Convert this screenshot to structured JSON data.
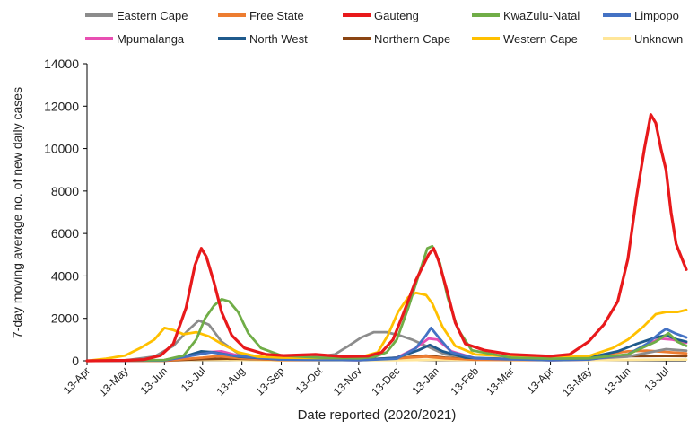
{
  "chart_data": {
    "type": "line",
    "title": "",
    "xlabel": "Date reported (2020/2021)",
    "ylabel": "7-day moving average no. of new daily cases",
    "ylim": [
      0,
      14000
    ],
    "yticks": [
      0,
      2000,
      4000,
      6000,
      8000,
      10000,
      12000,
      14000
    ],
    "xlim": [
      "2020-04-13",
      "2021-07-29"
    ],
    "xticks": [
      {
        "date": "2020-04-13",
        "label": "13-Apr"
      },
      {
        "date": "2020-05-13",
        "label": "13-May"
      },
      {
        "date": "2020-06-13",
        "label": "13-Jun"
      },
      {
        "date": "2020-07-13",
        "label": "13-Jul"
      },
      {
        "date": "2020-08-13",
        "label": "13-Aug"
      },
      {
        "date": "2020-09-13",
        "label": "13-Sep"
      },
      {
        "date": "2020-10-13",
        "label": "13-Oct"
      },
      {
        "date": "2020-11-13",
        "label": "13-Nov"
      },
      {
        "date": "2020-12-13",
        "label": "13-Dec"
      },
      {
        "date": "2021-01-13",
        "label": "13-Jan"
      },
      {
        "date": "2021-02-13",
        "label": "13-Feb"
      },
      {
        "date": "2021-03-13",
        "label": "13-Mar"
      },
      {
        "date": "2021-04-13",
        "label": "13-Apr"
      },
      {
        "date": "2021-05-13",
        "label": "13-May"
      },
      {
        "date": "2021-06-13",
        "label": "13-Jun"
      },
      {
        "date": "2021-07-13",
        "label": "13-Jul"
      }
    ],
    "grid": false,
    "legend_position": "top",
    "series": [
      {
        "name": "Eastern Cape",
        "color": "#8c8c8c",
        "points": [
          [
            "2020-04-13",
            0
          ],
          [
            "2020-05-13",
            20
          ],
          [
            "2020-06-05",
            200
          ],
          [
            "2020-06-20",
            700
          ],
          [
            "2020-07-01",
            1400
          ],
          [
            "2020-07-10",
            1900
          ],
          [
            "2020-07-18",
            1700
          ],
          [
            "2020-07-28",
            900
          ],
          [
            "2020-08-10",
            350
          ],
          [
            "2020-09-01",
            150
          ],
          [
            "2020-10-01",
            120
          ],
          [
            "2020-10-25",
            300
          ],
          [
            "2020-11-05",
            700
          ],
          [
            "2020-11-15",
            1100
          ],
          [
            "2020-11-25",
            1350
          ],
          [
            "2020-12-05",
            1350
          ],
          [
            "2020-12-15",
            1200
          ],
          [
            "2020-12-25",
            1000
          ],
          [
            "2021-01-05",
            700
          ],
          [
            "2021-01-20",
            300
          ],
          [
            "2021-02-13",
            120
          ],
          [
            "2021-03-13",
            60
          ],
          [
            "2021-04-13",
            60
          ],
          [
            "2021-05-13",
            90
          ],
          [
            "2021-06-13",
            200
          ],
          [
            "2021-07-13",
            550
          ],
          [
            "2021-07-29",
            480
          ]
        ]
      },
      {
        "name": "Free State",
        "color": "#ed7d31",
        "points": [
          [
            "2020-04-13",
            0
          ],
          [
            "2020-06-13",
            10
          ],
          [
            "2020-07-13",
            150
          ],
          [
            "2020-07-25",
            220
          ],
          [
            "2020-08-13",
            120
          ],
          [
            "2020-09-13",
            40
          ],
          [
            "2020-10-13",
            40
          ],
          [
            "2020-11-13",
            70
          ],
          [
            "2020-12-13",
            120
          ],
          [
            "2021-01-05",
            200
          ],
          [
            "2021-01-20",
            120
          ],
          [
            "2021-02-13",
            50
          ],
          [
            "2021-04-13",
            40
          ],
          [
            "2021-05-13",
            130
          ],
          [
            "2021-06-01",
            350
          ],
          [
            "2021-06-13",
            450
          ],
          [
            "2021-06-28",
            480
          ],
          [
            "2021-07-13",
            420
          ],
          [
            "2021-07-29",
            350
          ]
        ]
      },
      {
        "name": "Gauteng",
        "color": "#e8191b",
        "points": [
          [
            "2020-04-13",
            0
          ],
          [
            "2020-05-13",
            20
          ],
          [
            "2020-05-28",
            60
          ],
          [
            "2020-06-10",
            250
          ],
          [
            "2020-06-20",
            800
          ],
          [
            "2020-06-30",
            2500
          ],
          [
            "2020-07-07",
            4500
          ],
          [
            "2020-07-12",
            5300
          ],
          [
            "2020-07-16",
            4900
          ],
          [
            "2020-07-22",
            3700
          ],
          [
            "2020-07-28",
            2300
          ],
          [
            "2020-08-05",
            1200
          ],
          [
            "2020-08-15",
            600
          ],
          [
            "2020-09-01",
            300
          ],
          [
            "2020-09-15",
            250
          ],
          [
            "2020-10-10",
            300
          ],
          [
            "2020-11-01",
            200
          ],
          [
            "2020-11-20",
            220
          ],
          [
            "2020-12-01",
            400
          ],
          [
            "2020-12-10",
            1000
          ],
          [
            "2020-12-18",
            2200
          ],
          [
            "2020-12-28",
            3800
          ],
          [
            "2021-01-07",
            5000
          ],
          [
            "2021-01-11",
            5300
          ],
          [
            "2021-01-15",
            4700
          ],
          [
            "2021-01-22",
            3200
          ],
          [
            "2021-01-28",
            1800
          ],
          [
            "2021-02-05",
            800
          ],
          [
            "2021-02-20",
            500
          ],
          [
            "2021-03-13",
            300
          ],
          [
            "2021-04-13",
            220
          ],
          [
            "2021-04-28",
            300
          ],
          [
            "2021-05-13",
            900
          ],
          [
            "2021-05-25",
            1700
          ],
          [
            "2021-06-05",
            2800
          ],
          [
            "2021-06-13",
            4800
          ],
          [
            "2021-06-20",
            7800
          ],
          [
            "2021-06-26",
            10000
          ],
          [
            "2021-07-01",
            11600
          ],
          [
            "2021-07-05",
            11200
          ],
          [
            "2021-07-09",
            10000
          ],
          [
            "2021-07-13",
            9000
          ],
          [
            "2021-07-17",
            7000
          ],
          [
            "2021-07-21",
            5500
          ],
          [
            "2021-07-25",
            4900
          ],
          [
            "2021-07-29",
            4300
          ]
        ]
      },
      {
        "name": "KwaZulu-Natal",
        "color": "#70ad47",
        "points": [
          [
            "2020-04-13",
            0
          ],
          [
            "2020-06-13",
            40
          ],
          [
            "2020-06-28",
            250
          ],
          [
            "2020-07-08",
            1000
          ],
          [
            "2020-07-15",
            2000
          ],
          [
            "2020-07-22",
            2600
          ],
          [
            "2020-07-28",
            2900
          ],
          [
            "2020-08-03",
            2800
          ],
          [
            "2020-08-10",
            2300
          ],
          [
            "2020-08-18",
            1300
          ],
          [
            "2020-08-28",
            600
          ],
          [
            "2020-09-13",
            250
          ],
          [
            "2020-10-13",
            150
          ],
          [
            "2020-11-13",
            120
          ],
          [
            "2020-11-25",
            180
          ],
          [
            "2020-12-05",
            400
          ],
          [
            "2020-12-13",
            1000
          ],
          [
            "2020-12-22",
            2500
          ],
          [
            "2020-12-30",
            4000
          ],
          [
            "2021-01-06",
            5300
          ],
          [
            "2021-01-10",
            5400
          ],
          [
            "2021-01-16",
            4600
          ],
          [
            "2021-01-22",
            3000
          ],
          [
            "2021-01-30",
            1500
          ],
          [
            "2021-02-10",
            500
          ],
          [
            "2021-03-13",
            150
          ],
          [
            "2021-04-13",
            100
          ],
          [
            "2021-05-13",
            120
          ],
          [
            "2021-06-13",
            300
          ],
          [
            "2021-07-05",
            900
          ],
          [
            "2021-07-15",
            1300
          ],
          [
            "2021-07-22",
            900
          ],
          [
            "2021-07-29",
            700
          ]
        ]
      },
      {
        "name": "Limpopo",
        "color": "#4472c4",
        "points": [
          [
            "2020-04-13",
            0
          ],
          [
            "2020-06-13",
            20
          ],
          [
            "2020-07-05",
            250
          ],
          [
            "2020-07-20",
            400
          ],
          [
            "2020-08-05",
            250
          ],
          [
            "2020-09-13",
            60
          ],
          [
            "2020-11-13",
            30
          ],
          [
            "2020-12-13",
            100
          ],
          [
            "2020-12-28",
            600
          ],
          [
            "2021-01-05",
            1200
          ],
          [
            "2021-01-09",
            1550
          ],
          [
            "2021-01-15",
            1100
          ],
          [
            "2021-01-25",
            400
          ],
          [
            "2021-02-13",
            120
          ],
          [
            "2021-04-13",
            30
          ],
          [
            "2021-05-13",
            60
          ],
          [
            "2021-06-13",
            300
          ],
          [
            "2021-06-28",
            800
          ],
          [
            "2021-07-08",
            1300
          ],
          [
            "2021-07-13",
            1500
          ],
          [
            "2021-07-20",
            1300
          ],
          [
            "2021-07-29",
            1100
          ]
        ]
      },
      {
        "name": "Mpumalanga",
        "color": "#e84fb2",
        "points": [
          [
            "2020-04-13",
            0
          ],
          [
            "2020-06-13",
            20
          ],
          [
            "2020-07-01",
            200
          ],
          [
            "2020-07-15",
            400
          ],
          [
            "2020-07-28",
            450
          ],
          [
            "2020-08-13",
            200
          ],
          [
            "2020-09-13",
            60
          ],
          [
            "2020-11-13",
            30
          ],
          [
            "2020-12-13",
            150
          ],
          [
            "2020-12-28",
            600
          ],
          [
            "2021-01-07",
            1050
          ],
          [
            "2021-01-14",
            1000
          ],
          [
            "2021-01-25",
            450
          ],
          [
            "2021-02-13",
            120
          ],
          [
            "2021-04-13",
            30
          ],
          [
            "2021-05-13",
            60
          ],
          [
            "2021-06-13",
            300
          ],
          [
            "2021-06-28",
            750
          ],
          [
            "2021-07-08",
            1050
          ],
          [
            "2021-07-18",
            1000
          ],
          [
            "2021-07-29",
            850
          ]
        ]
      },
      {
        "name": "North West",
        "color": "#1f5a8c",
        "points": [
          [
            "2020-04-13",
            0
          ],
          [
            "2020-06-13",
            30
          ],
          [
            "2020-07-01",
            250
          ],
          [
            "2020-07-12",
            450
          ],
          [
            "2020-07-22",
            400
          ],
          [
            "2020-08-10",
            200
          ],
          [
            "2020-09-13",
            60
          ],
          [
            "2020-11-13",
            40
          ],
          [
            "2020-12-13",
            150
          ],
          [
            "2020-12-30",
            500
          ],
          [
            "2021-01-08",
            750
          ],
          [
            "2021-01-18",
            450
          ],
          [
            "2021-02-05",
            150
          ],
          [
            "2021-04-13",
            40
          ],
          [
            "2021-05-13",
            150
          ],
          [
            "2021-06-05",
            450
          ],
          [
            "2021-06-20",
            800
          ],
          [
            "2021-07-05",
            1100
          ],
          [
            "2021-07-13",
            1200
          ],
          [
            "2021-07-22",
            1000
          ],
          [
            "2021-07-29",
            900
          ]
        ]
      },
      {
        "name": "Northern Cape",
        "color": "#8b4513",
        "points": [
          [
            "2020-04-13",
            0
          ],
          [
            "2020-06-13",
            10
          ],
          [
            "2020-07-13",
            80
          ],
          [
            "2020-08-05",
            100
          ],
          [
            "2020-09-13",
            50
          ],
          [
            "2020-11-13",
            40
          ],
          [
            "2020-12-13",
            120
          ],
          [
            "2021-01-05",
            250
          ],
          [
            "2021-01-20",
            150
          ],
          [
            "2021-02-13",
            70
          ],
          [
            "2021-04-13",
            60
          ],
          [
            "2021-05-13",
            120
          ],
          [
            "2021-06-13",
            220
          ],
          [
            "2021-07-13",
            230
          ],
          [
            "2021-07-29",
            220
          ]
        ]
      },
      {
        "name": "Western Cape",
        "color": "#ffc000",
        "points": [
          [
            "2020-04-13",
            0
          ],
          [
            "2020-04-28",
            100
          ],
          [
            "2020-05-13",
            250
          ],
          [
            "2020-05-25",
            600
          ],
          [
            "2020-06-05",
            1000
          ],
          [
            "2020-06-13",
            1550
          ],
          [
            "2020-06-20",
            1450
          ],
          [
            "2020-06-28",
            1250
          ],
          [
            "2020-07-08",
            1350
          ],
          [
            "2020-07-18",
            1150
          ],
          [
            "2020-07-28",
            800
          ],
          [
            "2020-08-10",
            400
          ],
          [
            "2020-08-25",
            200
          ],
          [
            "2020-09-13",
            150
          ],
          [
            "2020-10-13",
            130
          ],
          [
            "2020-11-13",
            150
          ],
          [
            "2020-11-28",
            400
          ],
          [
            "2020-12-06",
            1200
          ],
          [
            "2020-12-14",
            2300
          ],
          [
            "2020-12-22",
            3000
          ],
          [
            "2020-12-28",
            3200
          ],
          [
            "2021-01-05",
            3100
          ],
          [
            "2021-01-10",
            2700
          ],
          [
            "2021-01-18",
            1600
          ],
          [
            "2021-01-28",
            700
          ],
          [
            "2021-02-13",
            300
          ],
          [
            "2021-03-13",
            200
          ],
          [
            "2021-04-13",
            150
          ],
          [
            "2021-05-13",
            220
          ],
          [
            "2021-06-01",
            600
          ],
          [
            "2021-06-13",
            1000
          ],
          [
            "2021-06-25",
            1600
          ],
          [
            "2021-07-05",
            2200
          ],
          [
            "2021-07-13",
            2300
          ],
          [
            "2021-07-22",
            2300
          ],
          [
            "2021-07-29",
            2400
          ]
        ]
      },
      {
        "name": "Unknown",
        "color": "#ffe699",
        "points": [
          [
            "2020-04-13",
            0
          ],
          [
            "2020-06-13",
            20
          ],
          [
            "2020-07-13",
            50
          ],
          [
            "2020-09-13",
            20
          ],
          [
            "2020-12-13",
            30
          ],
          [
            "2021-01-13",
            50
          ],
          [
            "2021-04-13",
            20
          ],
          [
            "2021-07-13",
            60
          ],
          [
            "2021-07-29",
            60
          ]
        ]
      }
    ]
  }
}
